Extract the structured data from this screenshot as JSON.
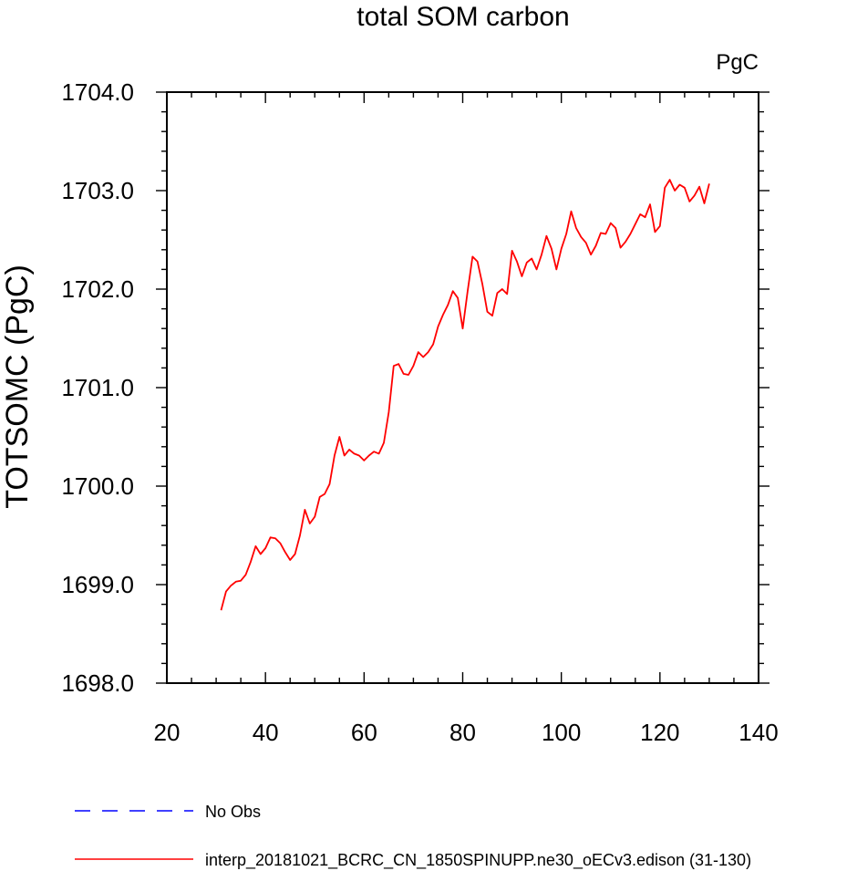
{
  "chart_data": {
    "type": "line",
    "title": "total SOM carbon",
    "units_label": "PgC",
    "xlabel": "",
    "ylabel": "TOTSOMC  (PgC)",
    "xlim": [
      20,
      140
    ],
    "ylim": [
      1698.0,
      1704.0
    ],
    "x_ticks": [
      20,
      40,
      60,
      80,
      100,
      120,
      140
    ],
    "x_tick_labels": [
      "20",
      "40",
      "60",
      "80",
      "100",
      "120",
      "140"
    ],
    "y_ticks": [
      1698.0,
      1699.0,
      1700.0,
      1701.0,
      1702.0,
      1703.0,
      1704.0
    ],
    "y_tick_labels": [
      "1698.0",
      "1699.0",
      "1700.0",
      "1701.0",
      "1702.0",
      "1703.0",
      "1704.0"
    ],
    "grid": false,
    "legend_position": "bottom-left",
    "series": [
      {
        "name": "interp_20181021_BCRC_CN_1850SPINUPP.ne30_oECv3.edison (31-130)",
        "color": "#ff0000",
        "dash": "solid",
        "x": [
          31,
          32,
          33,
          34,
          35,
          36,
          37,
          38,
          39,
          40,
          41,
          42,
          43,
          44,
          45,
          46,
          47,
          48,
          49,
          50,
          51,
          52,
          53,
          54,
          55,
          56,
          57,
          58,
          59,
          60,
          61,
          62,
          63,
          64,
          65,
          66,
          67,
          68,
          69,
          70,
          71,
          72,
          73,
          74,
          75,
          76,
          77,
          78,
          79,
          80,
          81,
          82,
          83,
          84,
          85,
          86,
          87,
          88,
          89,
          90,
          91,
          92,
          93,
          94,
          95,
          96,
          97,
          98,
          99,
          100,
          101,
          102,
          103,
          104,
          105,
          106,
          107,
          108,
          109,
          110,
          111,
          112,
          113,
          114,
          115,
          116,
          117,
          118,
          119,
          120,
          121,
          122,
          123,
          124,
          125,
          126,
          127,
          128,
          129,
          130
        ],
        "y": [
          1698.74,
          1698.93,
          1698.99,
          1699.03,
          1699.04,
          1699.1,
          1699.23,
          1699.39,
          1699.31,
          1699.37,
          1699.48,
          1699.47,
          1699.42,
          1699.33,
          1699.25,
          1699.31,
          1699.5,
          1699.76,
          1699.62,
          1699.69,
          1699.89,
          1699.92,
          1700.02,
          1700.31,
          1700.5,
          1700.31,
          1700.37,
          1700.33,
          1700.31,
          1700.26,
          1700.31,
          1700.35,
          1700.33,
          1700.44,
          1700.75,
          1701.22,
          1701.24,
          1701.14,
          1701.13,
          1701.22,
          1701.36,
          1701.31,
          1701.36,
          1701.44,
          1701.62,
          1701.74,
          1701.84,
          1701.98,
          1701.91,
          1701.6,
          1701.98,
          1702.33,
          1702.28,
          1702.05,
          1701.77,
          1701.73,
          1701.96,
          1702.0,
          1701.95,
          1702.39,
          1702.28,
          1702.13,
          1702.27,
          1702.31,
          1702.2,
          1702.35,
          1702.54,
          1702.41,
          1702.2,
          1702.41,
          1702.56,
          1702.79,
          1702.62,
          1702.53,
          1702.47,
          1702.35,
          1702.44,
          1702.57,
          1702.56,
          1702.67,
          1702.62,
          1702.42,
          1702.48,
          1702.56,
          1702.66,
          1702.76,
          1702.73,
          1702.86,
          1702.58,
          1702.64,
          1703.03,
          1703.11,
          1703.0,
          1703.06,
          1703.03,
          1702.89,
          1702.95,
          1703.04,
          1702.87,
          1703.07
        ]
      },
      {
        "name": "No Obs",
        "color": "#0000ff",
        "dash": "dashed",
        "x": [],
        "y": []
      }
    ]
  }
}
